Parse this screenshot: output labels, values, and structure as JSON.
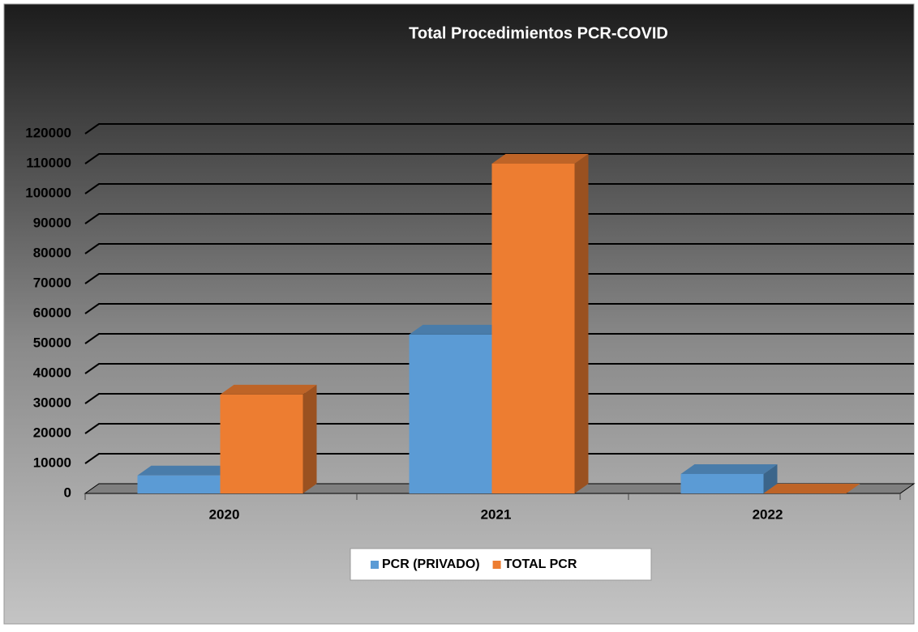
{
  "chart_data": {
    "type": "bar3d",
    "title": "Total Procedimientos PCR-COVID",
    "categories": [
      "2020",
      "2021",
      "2022"
    ],
    "series": [
      {
        "name": "PCR (PRIVADO)",
        "color": "#5b9bd5",
        "values": [
          6000,
          53000,
          6500
        ]
      },
      {
        "name": "TOTAL PCR",
        "color": "#ed7d31",
        "values": [
          33000,
          110000,
          0
        ]
      }
    ],
    "ylim": [
      0,
      120000
    ],
    "yticks": [
      0,
      10000,
      20000,
      30000,
      40000,
      50000,
      60000,
      70000,
      80000,
      90000,
      100000,
      110000,
      120000
    ],
    "grid": true,
    "legend": "bottom"
  }
}
